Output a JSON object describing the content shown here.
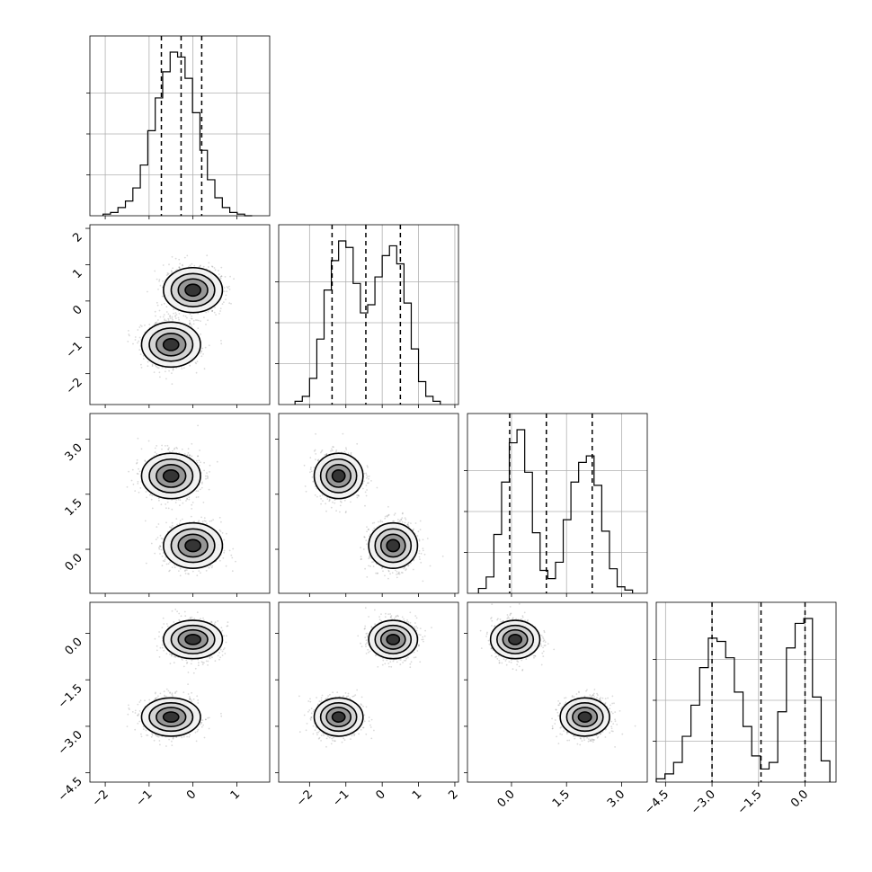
{
  "chart_data": {
    "type": "corner",
    "title": "",
    "variables": [
      {
        "label": "",
        "range": [
          -2.35,
          1.75
        ],
        "ticks": [
          -2,
          -1,
          0,
          1
        ],
        "tick_labels": [
          "−2",
          "−1",
          "0",
          "1"
        ]
      },
      {
        "label": "",
        "range": [
          -2.85,
          2.1
        ],
        "ticks": [
          -2,
          -1,
          0,
          1,
          2
        ],
        "tick_labels": [
          "−2",
          "−1",
          "0",
          "1",
          "2"
        ]
      },
      {
        "label": "",
        "range": [
          -1.2,
          3.7
        ],
        "ticks": [
          0.0,
          1.5,
          3.0
        ],
        "tick_labels": [
          "0.0",
          "1.5",
          "3.0"
        ]
      },
      {
        "label": "",
        "range": [
          -4.8,
          1.0
        ],
        "ticks": [
          -4.5,
          -3.0,
          -1.5,
          0.0
        ],
        "tick_labels": [
          "−4.5",
          "−3.0",
          "−1.5",
          "0.0"
        ]
      }
    ],
    "quantiles": [
      [
        -0.72,
        -0.27,
        0.2
      ],
      [
        -1.38,
        -0.45,
        0.5
      ],
      [
        -0.05,
        0.95,
        2.2
      ],
      [
        -3.0,
        -1.42,
        0.0
      ]
    ],
    "marginal_histograms": [
      {
        "variable": 0,
        "bin_edges": [
          -2.05,
          1.35
        ],
        "counts": [
          1,
          2,
          5,
          9,
          17,
          31,
          52,
          72,
          88,
          100,
          97,
          84,
          63,
          40,
          22,
          11,
          5,
          2,
          1,
          0
        ]
      },
      {
        "variable": 1,
        "bin_edges": [
          -2.4,
          1.6
        ],
        "counts": [
          2,
          5,
          16,
          40,
          70,
          88,
          100,
          96,
          74,
          56,
          61,
          78,
          91,
          97,
          86,
          62,
          34,
          14,
          5,
          2
        ]
      },
      {
        "variable": 2,
        "bin_edges": [
          -0.9,
          3.3
        ],
        "counts": [
          3,
          10,
          36,
          68,
          92,
          100,
          74,
          37,
          14,
          9,
          19,
          45,
          68,
          80,
          84,
          66,
          38,
          15,
          4,
          2
        ]
      },
      {
        "variable": 3,
        "bin_edges": [
          -4.8,
          0.8
        ],
        "counts": [
          2,
          5,
          12,
          28,
          47,
          70,
          88,
          86,
          76,
          55,
          34,
          16,
          8,
          12,
          43,
          82,
          97,
          100,
          52,
          13
        ]
      }
    ],
    "joint_modes": [
      {
        "x_var": 0,
        "y_var": 1,
        "components": [
          {
            "center": [
              0.0,
              0.3
            ],
            "weight": 0.5
          },
          {
            "center": [
              -0.5,
              -1.2
            ],
            "weight": 0.5
          }
        ]
      },
      {
        "x_var": 0,
        "y_var": 2,
        "components": [
          {
            "center": [
              -0.5,
              2.0
            ],
            "weight": 0.5
          },
          {
            "center": [
              0.0,
              0.1
            ],
            "weight": 0.5
          }
        ]
      },
      {
        "x_var": 1,
        "y_var": 2,
        "components": [
          {
            "center": [
              -1.2,
              2.0
            ],
            "weight": 0.5
          },
          {
            "center": [
              0.3,
              0.1
            ],
            "weight": 0.5
          }
        ]
      },
      {
        "x_var": 0,
        "y_var": 3,
        "components": [
          {
            "center": [
              0.0,
              -0.2
            ],
            "weight": 0.5
          },
          {
            "center": [
              -0.5,
              -2.7
            ],
            "weight": 0.5
          }
        ]
      },
      {
        "x_var": 1,
        "y_var": 3,
        "components": [
          {
            "center": [
              0.3,
              -0.2
            ],
            "weight": 0.5
          },
          {
            "center": [
              -1.2,
              -2.7
            ],
            "weight": 0.5
          }
        ]
      },
      {
        "x_var": 2,
        "y_var": 3,
        "components": [
          {
            "center": [
              0.1,
              -0.2
            ],
            "weight": 0.5
          },
          {
            "center": [
              2.0,
              -2.7
            ],
            "weight": 0.5
          }
        ]
      }
    ],
    "grid": true,
    "legend": "none"
  }
}
